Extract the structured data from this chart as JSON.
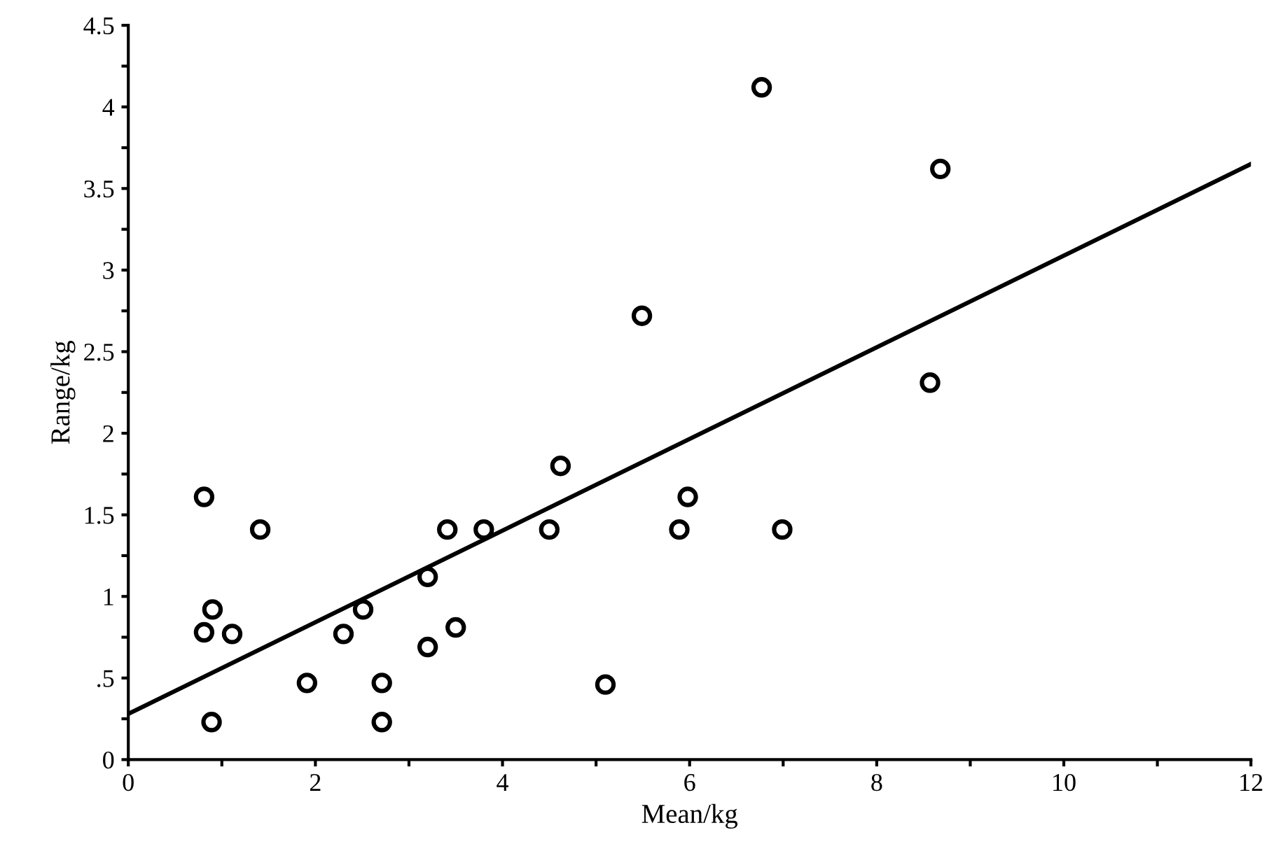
{
  "chart_data": {
    "type": "scatter",
    "xlabel": "Mean/kg",
    "ylabel": "Range/kg",
    "series": [
      {
        "color": "#000000",
        "marker": "circle",
        "x": [
          0.81,
          0.81,
          0.9,
          0.89,
          1.11,
          1.41,
          1.91,
          2.3,
          2.51,
          2.71,
          2.71,
          3.2,
          3.2,
          3.41,
          3.5,
          3.8,
          4.5,
          4.62,
          5.1,
          5.49,
          5.89,
          5.98,
          6.99,
          6.77,
          8.57,
          8.68
        ],
        "values": [
          1.61,
          0.78,
          0.92,
          0.23,
          0.77,
          1.41,
          0.47,
          0.77,
          0.92,
          0.47,
          0.23,
          1.12,
          0.69,
          1.41,
          0.81,
          1.41,
          1.41,
          1.8,
          0.46,
          2.72,
          1.41,
          1.61,
          1.41,
          4.12,
          2.31,
          3.62
        ]
      },
      {
        "type": "line",
        "color": "#000000",
        "marker": "none",
        "line_style": "solid",
        "x": [
          0,
          12
        ],
        "values": [
          0.28,
          3.65
        ]
      }
    ],
    "xlim": [
      0,
      12
    ],
    "ylim": [
      0,
      4.5
    ],
    "xticks": [
      0,
      {
        "value": 1,
        "label": null
      },
      2,
      {
        "value": 3,
        "label": null
      },
      4,
      {
        "value": 5,
        "label": null
      },
      6,
      {
        "value": 7,
        "label": null
      },
      8,
      {
        "value": 9,
        "label": null
      },
      10,
      {
        "value": 11,
        "label": null
      },
      12
    ],
    "yticks": [
      0,
      {
        "value": 0.25,
        "label": null
      },
      {
        "value": 0.5,
        "label": ".5"
      },
      {
        "value": 0.75,
        "label": null
      },
      1,
      {
        "value": 1.25,
        "label": null
      },
      1.5,
      {
        "value": 1.75,
        "label": null
      },
      2,
      {
        "value": 2.25,
        "label": null
      },
      2.5,
      {
        "value": 2.75,
        "label": null
      },
      3,
      {
        "value": 3.25,
        "label": null
      },
      3.5,
      {
        "value": 3.75,
        "label": null
      },
      4,
      {
        "value": 4.25,
        "label": null
      },
      4.5
    ],
    "grid": false,
    "legend": false
  }
}
